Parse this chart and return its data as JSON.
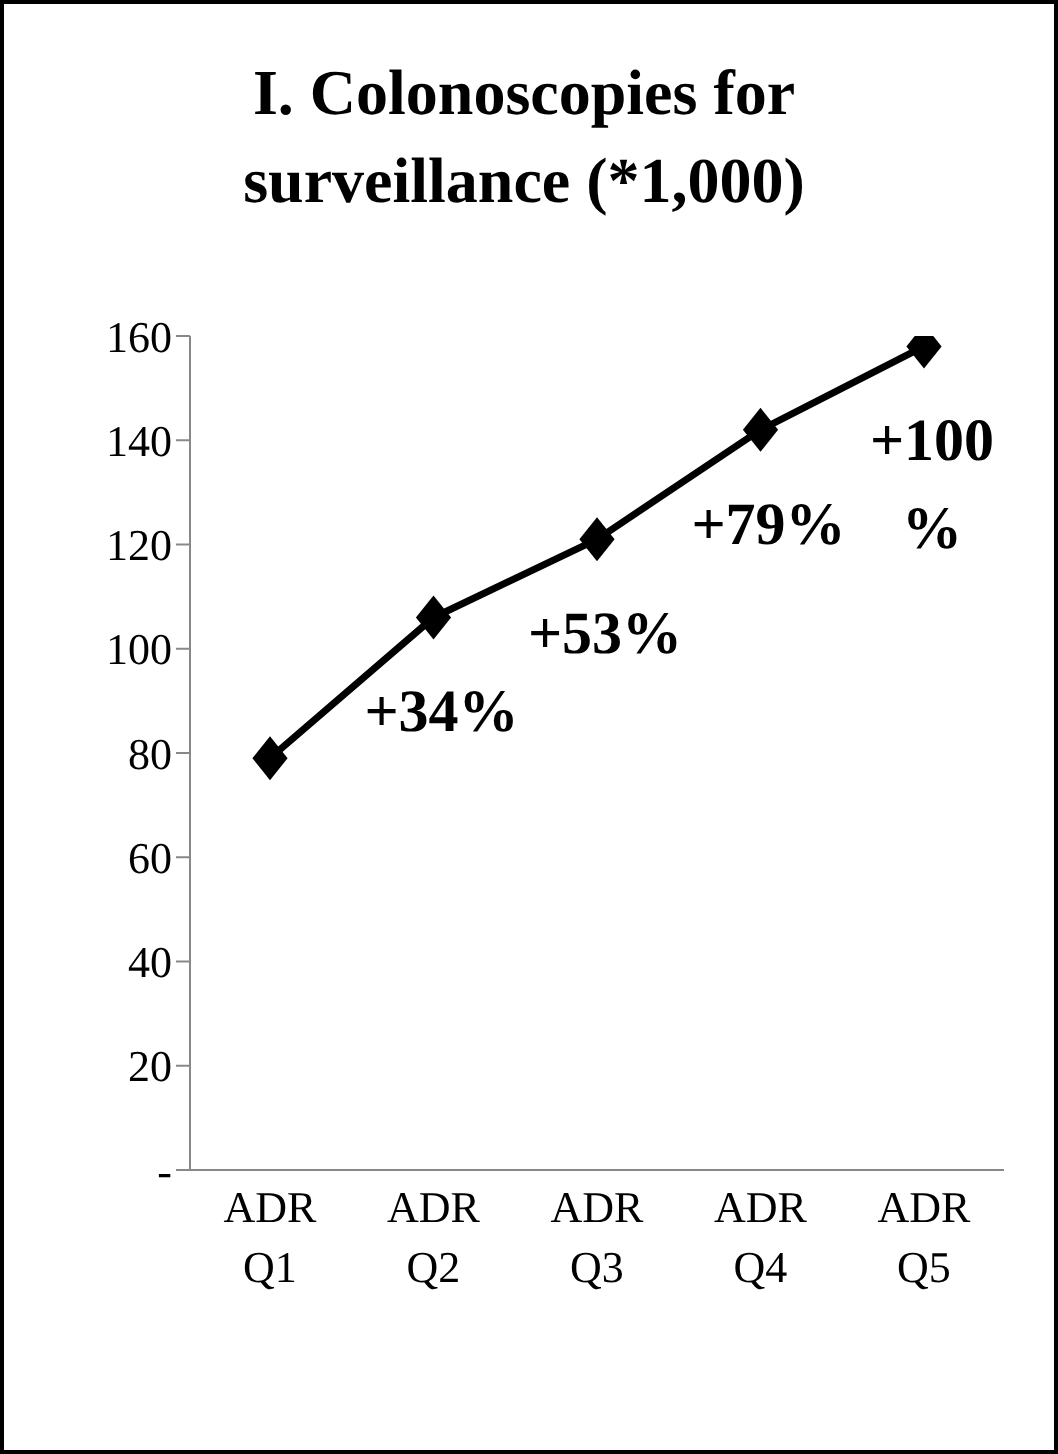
{
  "chart_data": {
    "type": "line",
    "title": "I. Colonoscopies for surveillance (*1,000)",
    "categories": [
      "ADR Q1",
      "ADR Q2",
      "ADR Q3",
      "ADR Q4",
      "ADR Q5"
    ],
    "series": [
      {
        "color": "#000000",
        "values": [
          79,
          106,
          121,
          142,
          158
        ]
      }
    ],
    "ylim": [
      0,
      160
    ],
    "yticks": [
      {
        "value": 0,
        "label": "-"
      },
      20,
      40,
      60,
      80,
      100,
      120,
      140,
      160
    ],
    "grid": false,
    "legend": false,
    "marker": "diamond",
    "line_style": "solid",
    "annotations": [
      {
        "text": "+34%",
        "x": "ADR Q2",
        "y": 106
      },
      {
        "text": "+53%",
        "x": "ADR Q3",
        "y": 121
      },
      {
        "text": "+79%",
        "x": "ADR Q4",
        "y": 142
      },
      {
        "text": "+100 %",
        "x": "ADR Q5",
        "y": 158
      }
    ]
  }
}
